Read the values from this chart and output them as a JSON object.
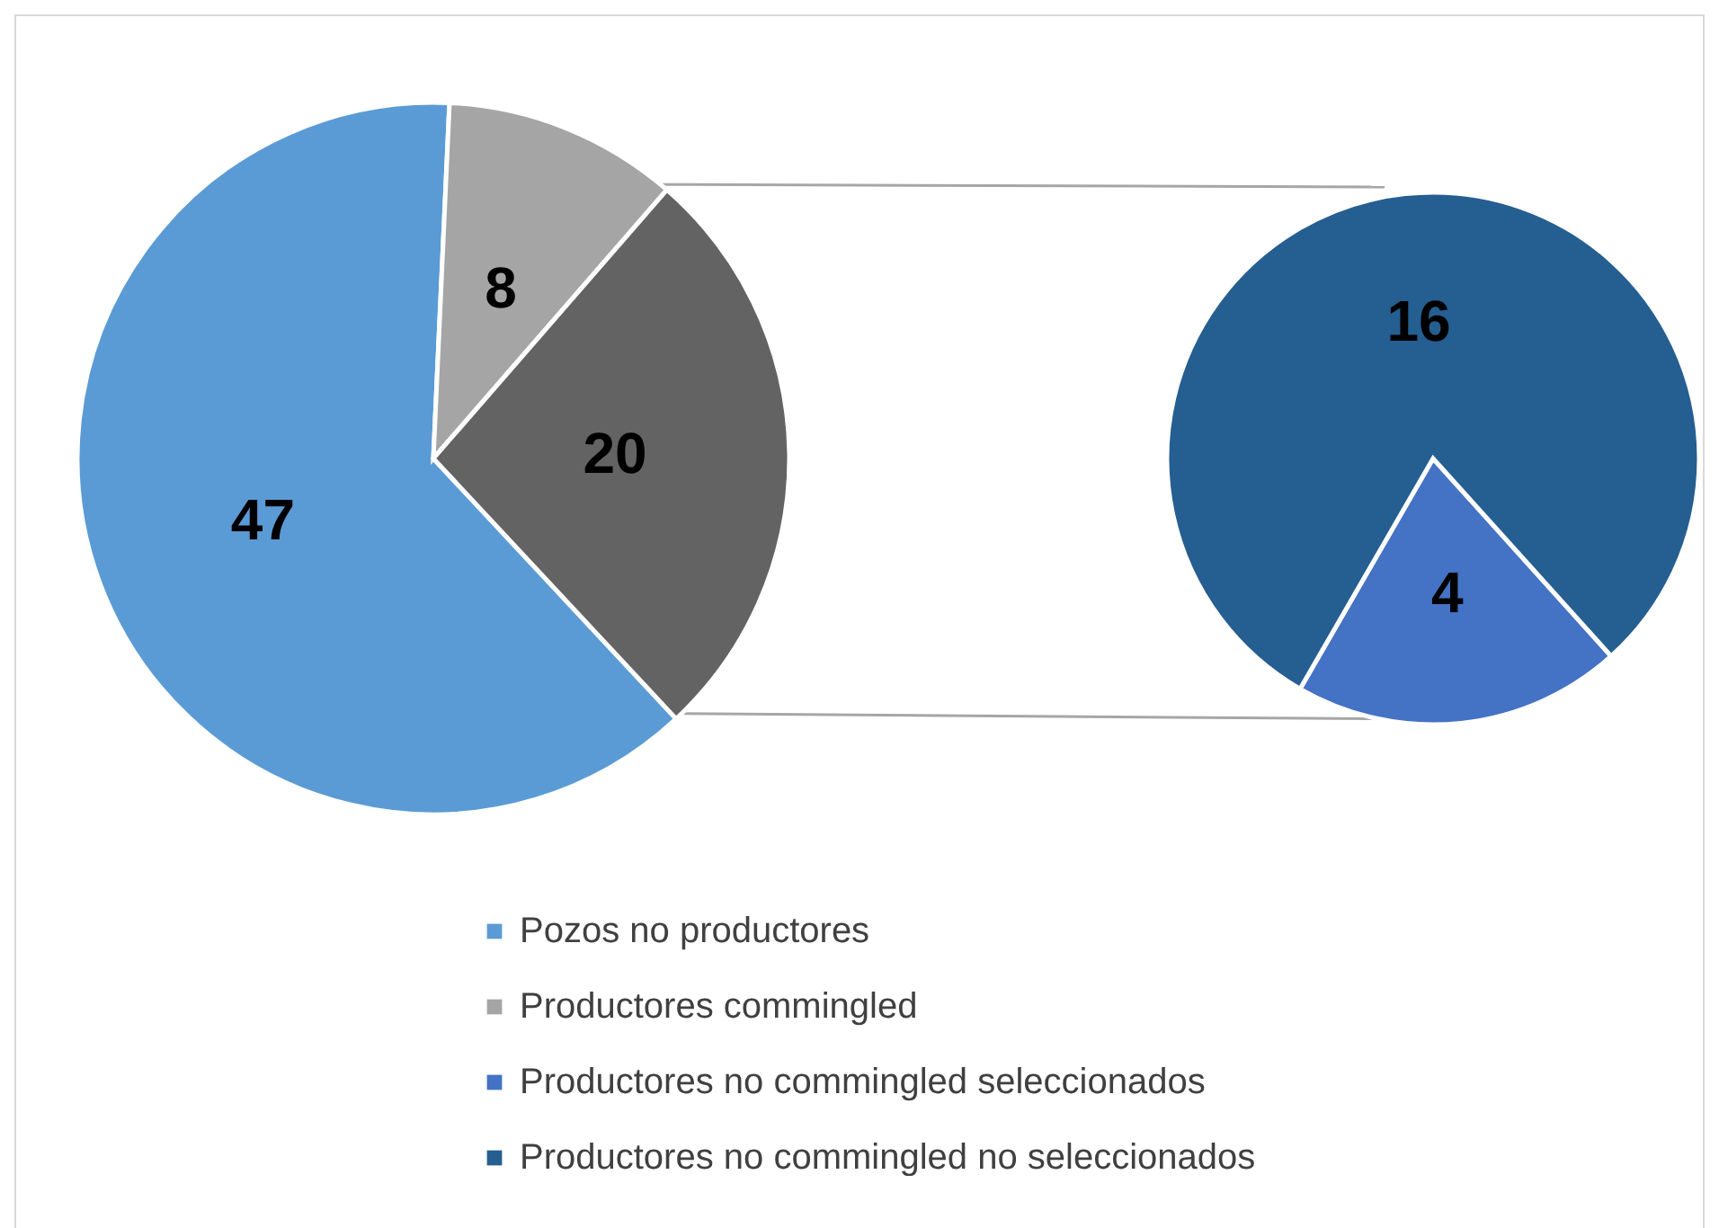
{
  "chart_data": [
    {
      "type": "pie",
      "categories": [
        "Pozos no productores",
        "Productores commingled",
        null
      ],
      "values": [
        47,
        8,
        20
      ],
      "colors": [
        "#5b9bd5",
        "#a5a5a5",
        "#636363"
      ],
      "data_labels": true,
      "legend": "bottom"
    },
    {
      "type": "pie",
      "categories": [
        "Productores no commingled seleccionados",
        "Productores no commingled no seleccionados"
      ],
      "values": [
        4,
        16
      ],
      "colors": [
        "#4472c4",
        "#255e91"
      ],
      "data_labels": true,
      "legend": "bottom"
    }
  ]
}
